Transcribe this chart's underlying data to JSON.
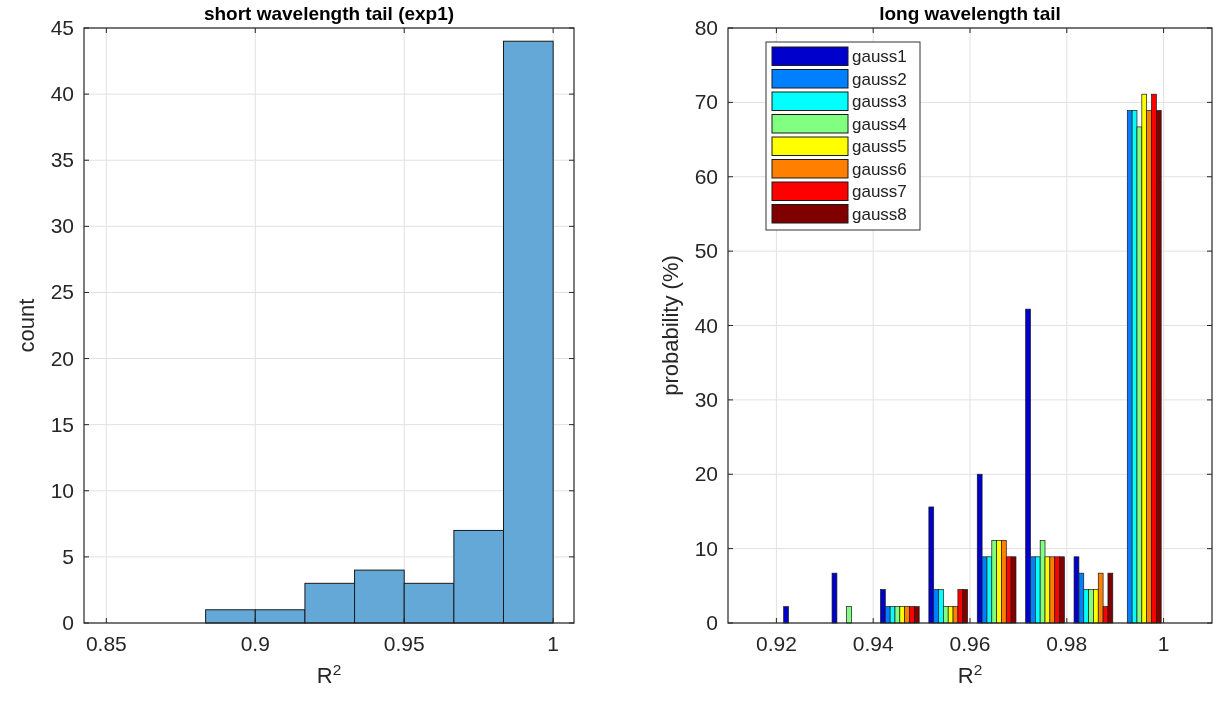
{
  "chart_data": [
    {
      "type": "histogram",
      "title": "short wavelength tail (exp1)",
      "xlabel": "R$^{2}$",
      "ylabel": "count",
      "bins": [
        0.88333,
        0.9,
        0.91667,
        0.93333,
        0.95,
        0.96667,
        0.98333,
        1.0
      ],
      "values": [
        1,
        1,
        3,
        4,
        3,
        7,
        44
      ],
      "color": "#64a8d8",
      "xlim": [
        0.8425,
        1.007
      ],
      "xticks": [
        0.85,
        0.9,
        0.95,
        1
      ],
      "ylim": [
        0,
        45
      ],
      "yticks": [
        0,
        5,
        10,
        15,
        20,
        25,
        30,
        35,
        40,
        45
      ],
      "grid": true
    },
    {
      "type": "bar",
      "title": "long wavelength tail",
      "xlabel": "R$^{2}$",
      "ylabel": "probability (%)",
      "x": [
        0.9255,
        0.9355,
        0.9455,
        0.9555,
        0.9655,
        0.9755,
        0.9855,
        0.9955
      ],
      "series": [
        {
          "name": "gauss1",
          "color": "#0000cc",
          "values": [
            2.2,
            6.7,
            4.5,
            15.6,
            20.0,
            42.2,
            8.9,
            0
          ]
        },
        {
          "name": "gauss2",
          "color": "#0080ff",
          "values": [
            0,
            0,
            2.2,
            4.5,
            8.9,
            8.9,
            6.7,
            68.9
          ]
        },
        {
          "name": "gauss3",
          "color": "#00ffff",
          "values": [
            0,
            0,
            2.2,
            4.5,
            8.9,
            8.9,
            4.5,
            68.9
          ]
        },
        {
          "name": "gauss4",
          "color": "#80ff80",
          "values": [
            0,
            2.2,
            2.2,
            2.2,
            11.1,
            11.1,
            4.5,
            66.7
          ]
        },
        {
          "name": "gauss5",
          "color": "#ffff00",
          "values": [
            0,
            0,
            2.2,
            2.2,
            11.1,
            8.9,
            4.5,
            71.1
          ]
        },
        {
          "name": "gauss6",
          "color": "#ff8000",
          "values": [
            0,
            0,
            2.2,
            2.2,
            11.1,
            8.9,
            6.7,
            68.9
          ]
        },
        {
          "name": "gauss7",
          "color": "#ff0000",
          "values": [
            0,
            0,
            2.2,
            4.5,
            8.9,
            8.9,
            2.2,
            71.1
          ]
        },
        {
          "name": "gauss8",
          "color": "#800000",
          "values": [
            0,
            0,
            2.2,
            4.5,
            8.9,
            8.9,
            6.7,
            68.9
          ]
        }
      ],
      "xlim": [
        0.91,
        1.01
      ],
      "xticks": [
        0.92,
        0.94,
        0.96,
        0.98,
        1
      ],
      "ylim": [
        0,
        80
      ],
      "yticks": [
        0,
        10,
        20,
        30,
        40,
        50,
        60,
        70,
        80
      ],
      "grid": true,
      "legend": "top left"
    }
  ]
}
